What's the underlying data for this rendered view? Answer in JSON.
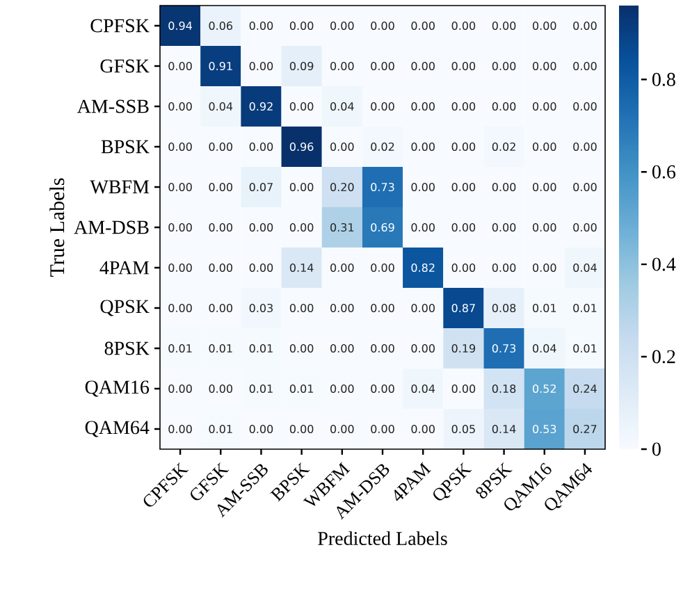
{
  "chart_data": {
    "type": "heatmap",
    "xlabel": "Predicted Labels",
    "ylabel": "True Labels",
    "categories": [
      "CPFSK",
      "GFSK",
      "AM-SSB",
      "BPSK",
      "WBFM",
      "AM-DSB",
      "4PAM",
      "QPSK",
      "8PSK",
      "QAM16",
      "QAM64"
    ],
    "y_categories": [
      "CPFSK",
      "GFSK",
      "AM-SSB",
      "BPSK",
      "WBFM",
      "AM-DSB",
      "4PAM",
      "QPSK",
      "8PSK",
      "QAM16",
      "QAM64"
    ],
    "cells": [
      [
        0.94,
        0.06,
        0.0,
        0.0,
        0.0,
        0.0,
        0.0,
        0.0,
        0.0,
        0.0,
        0.0
      ],
      [
        0.0,
        0.91,
        0.0,
        0.09,
        0.0,
        0.0,
        0.0,
        0.0,
        0.0,
        0.0,
        0.0
      ],
      [
        0.0,
        0.04,
        0.92,
        0.0,
        0.04,
        0.0,
        0.0,
        0.0,
        0.0,
        0.0,
        0.0
      ],
      [
        0.0,
        0.0,
        0.0,
        0.96,
        0.0,
        0.02,
        0.0,
        0.0,
        0.02,
        0.0,
        0.0
      ],
      [
        0.0,
        0.0,
        0.07,
        0.0,
        0.2,
        0.73,
        0.0,
        0.0,
        0.0,
        0.0,
        0.0
      ],
      [
        0.0,
        0.0,
        0.0,
        0.0,
        0.31,
        0.69,
        0.0,
        0.0,
        0.0,
        0.0,
        0.0
      ],
      [
        0.0,
        0.0,
        0.0,
        0.14,
        0.0,
        0.0,
        0.82,
        0.0,
        0.0,
        0.0,
        0.04
      ],
      [
        0.0,
        0.0,
        0.03,
        0.0,
        0.0,
        0.0,
        0.0,
        0.87,
        0.08,
        0.01,
        0.01
      ],
      [
        0.01,
        0.01,
        0.01,
        0.0,
        0.0,
        0.0,
        0.0,
        0.19,
        0.73,
        0.04,
        0.01
      ],
      [
        0.0,
        0.0,
        0.01,
        0.01,
        0.0,
        0.0,
        0.04,
        0.0,
        0.18,
        0.52,
        0.24
      ],
      [
        0.0,
        0.01,
        0.0,
        0.0,
        0.0,
        0.0,
        0.0,
        0.05,
        0.14,
        0.53,
        0.27
      ]
    ],
    "cell_labels": [
      [
        "0.94",
        "0.06",
        "0.00",
        "0.00",
        "0.00",
        "0.00",
        "0.00",
        "0.00",
        "0.00",
        "0.00",
        "0.00"
      ],
      [
        "0.00",
        "0.91",
        "0.00",
        "0.09",
        "0.00",
        "0.00",
        "0.00",
        "0.00",
        "0.00",
        "0.00",
        "0.00"
      ],
      [
        "0.00",
        "0.04",
        "0.92",
        "0.00",
        "0.04",
        "0.00",
        "0.00",
        "0.00",
        "0.00",
        "0.00",
        "0.00"
      ],
      [
        "0.00",
        "0.00",
        "0.00",
        "0.96",
        "0.00",
        "0.02",
        "0.00",
        "0.00",
        "0.02",
        "0.00",
        "0.00"
      ],
      [
        "0.00",
        "0.00",
        "0.07",
        "0.00",
        "0.20",
        "0.73",
        "0.00",
        "0.00",
        "0.00",
        "0.00",
        "0.00"
      ],
      [
        "0.00",
        "0.00",
        "0.00",
        "0.00",
        "0.31",
        "0.69",
        "0.00",
        "0.00",
        "0.00",
        "0.00",
        "0.00"
      ],
      [
        "0.00",
        "0.00",
        "0.00",
        "0.14",
        "0.00",
        "0.00",
        "0.82",
        "0.00",
        "0.00",
        "0.00",
        "0.04"
      ],
      [
        "0.00",
        "0.00",
        "0.03",
        "0.00",
        "0.00",
        "0.00",
        "0.00",
        "0.87",
        "0.08",
        "0.01",
        "0.01"
      ],
      [
        "0.01",
        "0.01",
        "0.01",
        "0.00",
        "0.00",
        "0.00",
        "0.00",
        "0.19",
        "0.73",
        "0.04",
        "0.01"
      ],
      [
        "0.00",
        "0.00",
        "0.01",
        "0.01",
        "0.00",
        "0.00",
        "0.04",
        "0.00",
        "0.18",
        "0.52",
        "0.24"
      ],
      [
        "0.00",
        "0.01",
        "0.00",
        "0.00",
        "0.00",
        "0.00",
        "0.00",
        "0.05",
        "0.14",
        "0.53",
        "0.27"
      ]
    ],
    "clim": [
      0,
      0.96
    ],
    "cticks": [
      0,
      0.2,
      0.4,
      0.6,
      0.8
    ]
  }
}
